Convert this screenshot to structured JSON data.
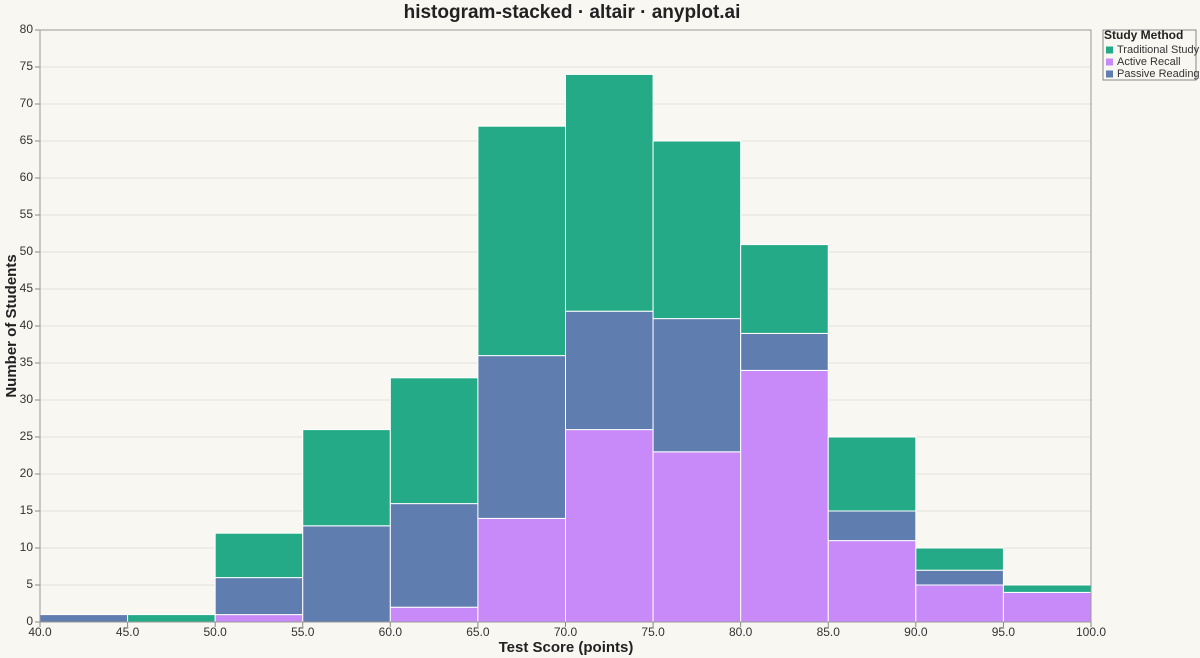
{
  "chart_data": {
    "type": "histogram-stacked",
    "title": "histogram-stacked · altair · anyplot.ai",
    "x_label": "Test Score (points)",
    "y_label": "Number of Students",
    "legend_title": "Study Method",
    "legend_position": "right",
    "bins": [
      40,
      45,
      50,
      55,
      60,
      65,
      70,
      75,
      80,
      85,
      90,
      95,
      100
    ],
    "series": [
      {
        "name": "Traditional Study",
        "color": "#24aa87",
        "values": [
          0,
          1,
          6,
          13,
          17,
          31,
          32,
          24,
          12,
          10,
          3,
          1
        ]
      },
      {
        "name": "Active Recall",
        "color": "#c98af9",
        "values": [
          0,
          0,
          1,
          0,
          2,
          14,
          26,
          23,
          34,
          11,
          5,
          4
        ]
      },
      {
        "name": "Passive Reading",
        "color": "#5f7daf",
        "values": [
          1,
          0,
          5,
          13,
          14,
          22,
          16,
          18,
          5,
          4,
          2,
          0
        ]
      }
    ],
    "xlim": [
      40,
      100
    ],
    "xticks": [
      {
        "value": 40,
        "label": "40.0"
      },
      {
        "value": 45,
        "label": "45.0"
      },
      {
        "value": 50,
        "label": "50.0"
      },
      {
        "value": 55,
        "label": "55.0"
      },
      {
        "value": 60,
        "label": "60.0"
      },
      {
        "value": 65,
        "label": "65.0"
      },
      {
        "value": 70,
        "label": "70.0"
      },
      {
        "value": 75,
        "label": "75.0"
      },
      {
        "value": 80,
        "label": "80.0"
      },
      {
        "value": 85,
        "label": "85.0"
      },
      {
        "value": 90,
        "label": "90.0"
      },
      {
        "value": 95,
        "label": "95.0"
      },
      {
        "value": 100,
        "label": "100.0"
      }
    ],
    "ylim": [
      0,
      80
    ],
    "yticks": [
      0,
      5,
      10,
      15,
      20,
      25,
      30,
      35,
      40,
      45,
      50,
      55,
      60,
      65,
      70,
      75,
      80
    ],
    "grid": true
  }
}
